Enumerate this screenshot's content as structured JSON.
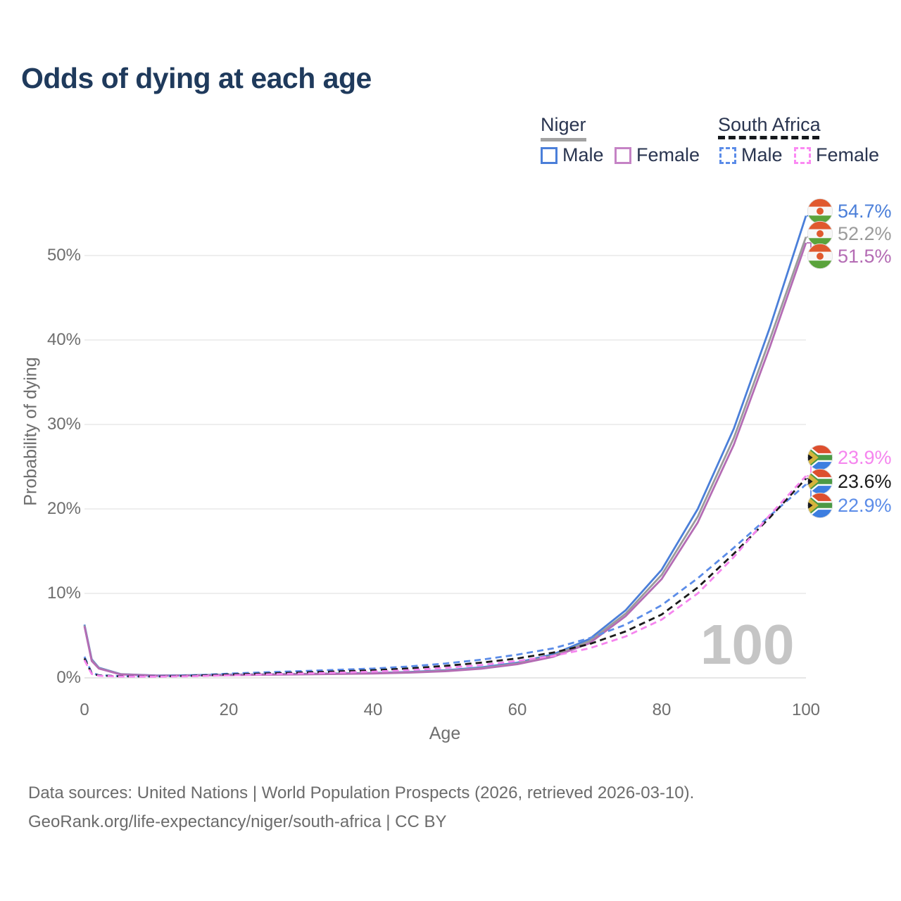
{
  "title": "Odds of dying at each age",
  "legend": {
    "niger": "Niger",
    "south_africa": "South Africa",
    "niger_male": "Male",
    "niger_female": "Female",
    "sa_male": "Male",
    "sa_female": "Female"
  },
  "colors": {
    "title": "#1f3a5c",
    "niger_male": "#4b7fd9",
    "niger_both": "#9b9b9b",
    "niger_female": "#b46cb4",
    "sa_male": "#5b8ce8",
    "sa_both": "#1a1a1a",
    "sa_female": "#f585ee",
    "axis_text": "#6e6e6e",
    "watermark": "#c5c5c5"
  },
  "watermark": "100",
  "axis": {
    "y_title": "Probability of dying",
    "x_title": "Age",
    "y_tick_labels": [
      "0%",
      "10%",
      "20%",
      "30%",
      "40%",
      "50%"
    ],
    "x_tick_labels": [
      "0",
      "20",
      "40",
      "60",
      "80",
      "100"
    ]
  },
  "footer": {
    "line1": "Data sources: United Nations | World Population Prospects (2026, retrieved 2026-03-10).",
    "line2": "GeoRank.org/life-expectancy/niger/south-africa | CC BY"
  },
  "chart_data": {
    "type": "line",
    "title": "Odds of dying at each age",
    "xlabel": "Age",
    "ylabel": "Probability of dying",
    "xlim": [
      0,
      100
    ],
    "ylim_percent": [
      0,
      57.5
    ],
    "x_ticks": [
      0,
      20,
      40,
      60,
      80,
      100
    ],
    "y_ticks_percent": [
      0,
      10,
      20,
      30,
      40,
      50
    ],
    "grid": "horizontal",
    "legend_position": "top-right",
    "x": [
      0,
      1,
      2,
      5,
      10,
      15,
      20,
      25,
      30,
      35,
      40,
      45,
      50,
      55,
      60,
      65,
      70,
      75,
      80,
      85,
      90,
      95,
      100
    ],
    "series": [
      {
        "name": "Niger Male",
        "country": "Niger",
        "sex": "Male",
        "style": "solid",
        "color": "#4b7fd9",
        "values": [
          6.3,
          2.2,
          1.2,
          0.45,
          0.28,
          0.32,
          0.38,
          0.42,
          0.47,
          0.52,
          0.58,
          0.7,
          0.9,
          1.25,
          1.8,
          2.8,
          4.6,
          8.0,
          12.8,
          20.0,
          29.5,
          41.5,
          54.7
        ],
        "end_label": "54.7%"
      },
      {
        "name": "Niger Both sexes",
        "country": "Niger",
        "sex": "Both",
        "style": "solid",
        "color": "#9b9b9b",
        "values": [
          6.2,
          2.1,
          1.15,
          0.43,
          0.26,
          0.3,
          0.35,
          0.4,
          0.44,
          0.49,
          0.54,
          0.66,
          0.84,
          1.15,
          1.7,
          2.65,
          4.35,
          7.6,
          12.2,
          19.1,
          28.4,
          40.1,
          52.2
        ],
        "end_label": "52.2%"
      },
      {
        "name": "Niger Female",
        "country": "Niger",
        "sex": "Female",
        "style": "solid",
        "color": "#b46cb4",
        "values": [
          6.1,
          2.0,
          1.1,
          0.41,
          0.25,
          0.28,
          0.32,
          0.37,
          0.41,
          0.46,
          0.51,
          0.62,
          0.78,
          1.08,
          1.62,
          2.5,
          4.1,
          7.3,
          11.7,
          18.4,
          27.6,
          39.2,
          51.5
        ],
        "end_label": "51.5%"
      },
      {
        "name": "South Africa Male",
        "country": "South Africa",
        "sex": "Male",
        "style": "dashed",
        "color": "#5b8ce8",
        "values": [
          2.5,
          0.6,
          0.32,
          0.2,
          0.18,
          0.3,
          0.5,
          0.66,
          0.8,
          0.95,
          1.1,
          1.35,
          1.7,
          2.15,
          2.75,
          3.5,
          4.7,
          6.3,
          8.6,
          11.8,
          15.4,
          19.2,
          22.9
        ],
        "end_label": "22.9%"
      },
      {
        "name": "South Africa Both sexes",
        "country": "South Africa",
        "sex": "Both",
        "style": "dashed",
        "color": "#1a1a1a",
        "values": [
          2.3,
          0.52,
          0.28,
          0.18,
          0.16,
          0.25,
          0.4,
          0.52,
          0.63,
          0.76,
          0.9,
          1.12,
          1.42,
          1.8,
          2.3,
          3.0,
          4.0,
          5.5,
          7.5,
          10.7,
          14.7,
          19.0,
          23.6
        ],
        "end_label": "23.6%"
      },
      {
        "name": "South Africa Female",
        "country": "South Africa",
        "sex": "Female",
        "style": "dashed",
        "color": "#f585ee",
        "values": [
          2.1,
          0.46,
          0.25,
          0.16,
          0.14,
          0.2,
          0.3,
          0.42,
          0.52,
          0.62,
          0.74,
          0.92,
          1.18,
          1.52,
          2.0,
          2.6,
          3.5,
          4.9,
          6.9,
          10.0,
          14.3,
          19.3,
          23.9
        ],
        "end_label": "23.9%"
      }
    ]
  }
}
